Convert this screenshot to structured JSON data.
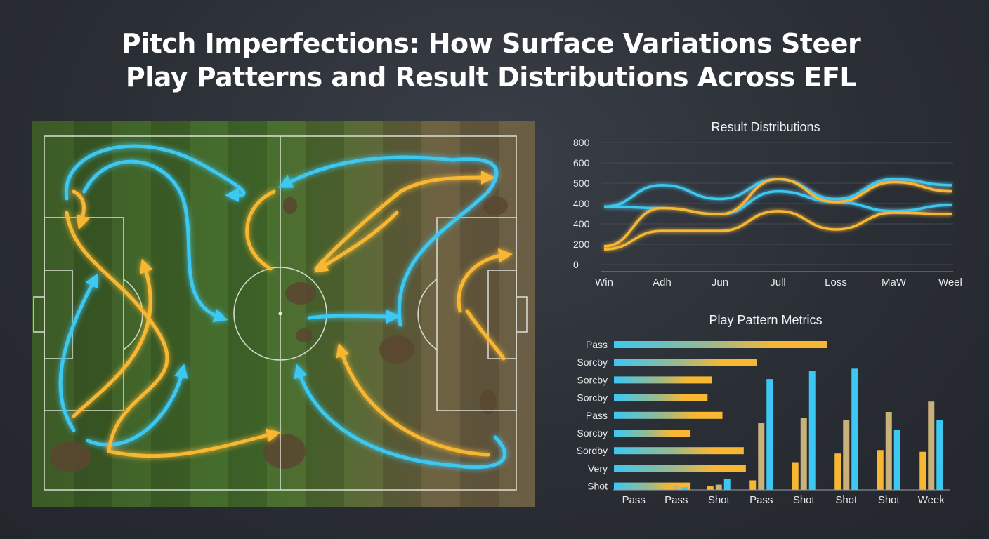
{
  "title": {
    "line1": "Pitch Imperfections: How Surface Variations Steer",
    "line2": "Play Patterns and Result Distributions Across EFL"
  },
  "colors": {
    "blue": "#3cc8f2",
    "yellow": "#f7b733",
    "pitch_green": "#3f6b2a",
    "dirt": "#6b5a40",
    "background": "#2a2e35"
  },
  "chart_data": [
    {
      "type": "line",
      "title": "Result Distributions",
      "categories": [
        "Win",
        "Adh",
        "Jun",
        "Jull",
        "Loss",
        "MaW",
        "Week"
      ],
      "y_tick_labels": [
        "800",
        "600",
        "500",
        "400",
        "400",
        "200",
        "0"
      ],
      "ylim": [
        0,
        800
      ],
      "grid": true,
      "series": [
        {
          "color": "#3cc8f2",
          "values": [
            380,
            520,
            430,
            560,
            430,
            560,
            520
          ]
        },
        {
          "color": "#3cc8f2",
          "values": [
            380,
            370,
            330,
            480,
            410,
            350,
            390
          ]
        },
        {
          "color": "#f7b733",
          "values": [
            120,
            370,
            330,
            560,
            410,
            540,
            480
          ]
        },
        {
          "color": "#f7b733",
          "values": [
            100,
            220,
            220,
            350,
            230,
            340,
            330
          ]
        }
      ]
    },
    {
      "type": "bar",
      "title": "Play Pattern Metrics",
      "orientation": "horizontal",
      "categories": [
        "Pass",
        "Sorcby",
        "Sorcby",
        "Sorcby",
        "Pass",
        "Sorcby",
        "Sordby",
        "Very",
        "Shot"
      ],
      "values": [
        100,
        67,
        46,
        44,
        51,
        36,
        61,
        62,
        36
      ],
      "xlim": [
        0,
        100
      ]
    },
    {
      "type": "bar",
      "orientation": "vertical",
      "categories": [
        "Pass",
        "Pass",
        "Shot",
        "Pass",
        "Shot",
        "Shot",
        "Shot",
        "Week"
      ],
      "series": [
        {
          "color": "#f7b733",
          "values": [
            0,
            2,
            4,
            11,
            32,
            42,
            46,
            44
          ]
        },
        {
          "color": "#c9b27a",
          "values": [
            0,
            5,
            6,
            77,
            83,
            81,
            90,
            102
          ]
        },
        {
          "color": "#3cc8f2",
          "values": [
            0,
            3,
            13,
            128,
            137,
            140,
            69,
            81
          ]
        }
      ],
      "ylim": [
        0,
        150
      ]
    }
  ]
}
